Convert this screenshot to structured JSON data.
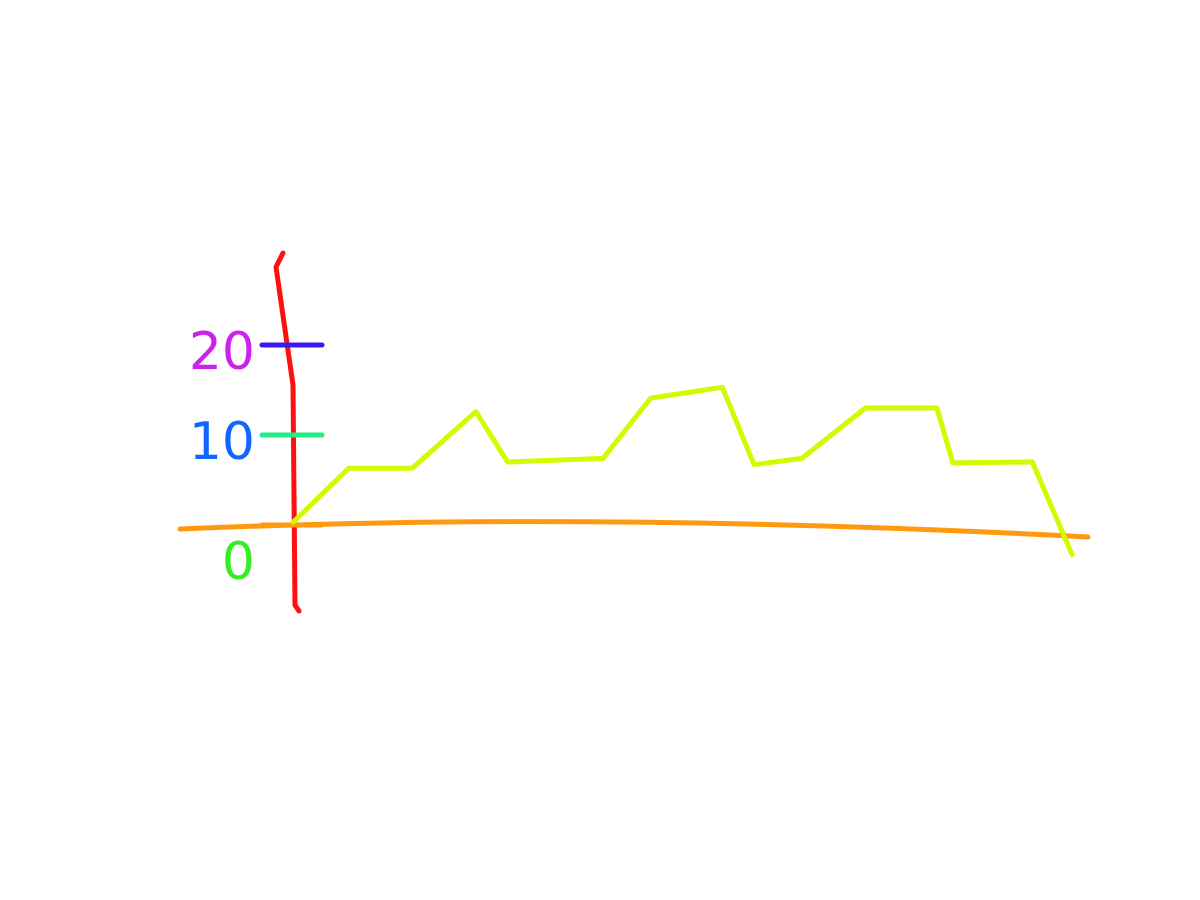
{
  "chart_data": {
    "type": "line",
    "x": [
      0,
      7,
      15,
      23,
      27,
      39,
      45,
      54,
      58,
      64,
      72,
      81,
      83,
      93,
      98
    ],
    "values": [
      0.3,
      6.3,
      6.3,
      12.6,
      7,
      7.4,
      14.1,
      15.3,
      6.7,
      7.4,
      13,
      13,
      6.9,
      7,
      -3.3
    ],
    "color": "#d4fa00",
    "xlim": [
      0,
      100
    ],
    "ylim": [
      -10,
      30
    ],
    "yticks": [
      0,
      10,
      20
    ],
    "x_axis_color": "#ff9a10",
    "y_axis_color": "#ff1010"
  }
}
